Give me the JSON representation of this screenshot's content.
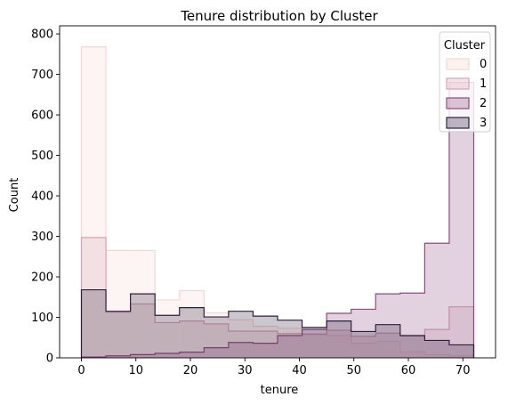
{
  "chart_data": {
    "type": "histogram",
    "title": "Tenure distribution by Cluster",
    "xlabel": "tenure",
    "ylabel": "Count",
    "xlim": [
      -4,
      76
    ],
    "ylim": [
      0,
      820
    ],
    "xticks": [
      0,
      10,
      20,
      30,
      40,
      50,
      60,
      70
    ],
    "yticks": [
      0,
      100,
      200,
      300,
      400,
      500,
      600,
      700,
      800
    ],
    "bin_edges": [
      0,
      4.5,
      9,
      13.5,
      18,
      22.5,
      27,
      31.5,
      36,
      40.5,
      45,
      49.5,
      54,
      58.5,
      63,
      67.5,
      72
    ],
    "legend": {
      "title": "Cluster",
      "placement": "top-right"
    },
    "series": [
      {
        "name": "0",
        "color": "#f6d7cf",
        "values": [
          768,
          265,
          265,
          143,
          166,
          111,
          94,
          78,
          73,
          60,
          55,
          36,
          40,
          15,
          8,
          5
        ]
      },
      {
        "name": "1",
        "color": "#d9a2b4",
        "values": [
          297,
          113,
          133,
          87,
          91,
          84,
          66,
          66,
          60,
          58,
          68,
          53,
          61,
          54,
          70,
          126
        ]
      },
      {
        "name": "2",
        "color": "#8d4b7e",
        "values": [
          2,
          5,
          8,
          11,
          14,
          25,
          38,
          36,
          55,
          70,
          110,
          120,
          158,
          160,
          283,
          680
        ]
      },
      {
        "name": "3",
        "color": "#2f1f3d",
        "values": [
          168,
          115,
          158,
          105,
          124,
          101,
          115,
          103,
          93,
          75,
          91,
          65,
          82,
          55,
          43,
          32
        ]
      }
    ]
  }
}
